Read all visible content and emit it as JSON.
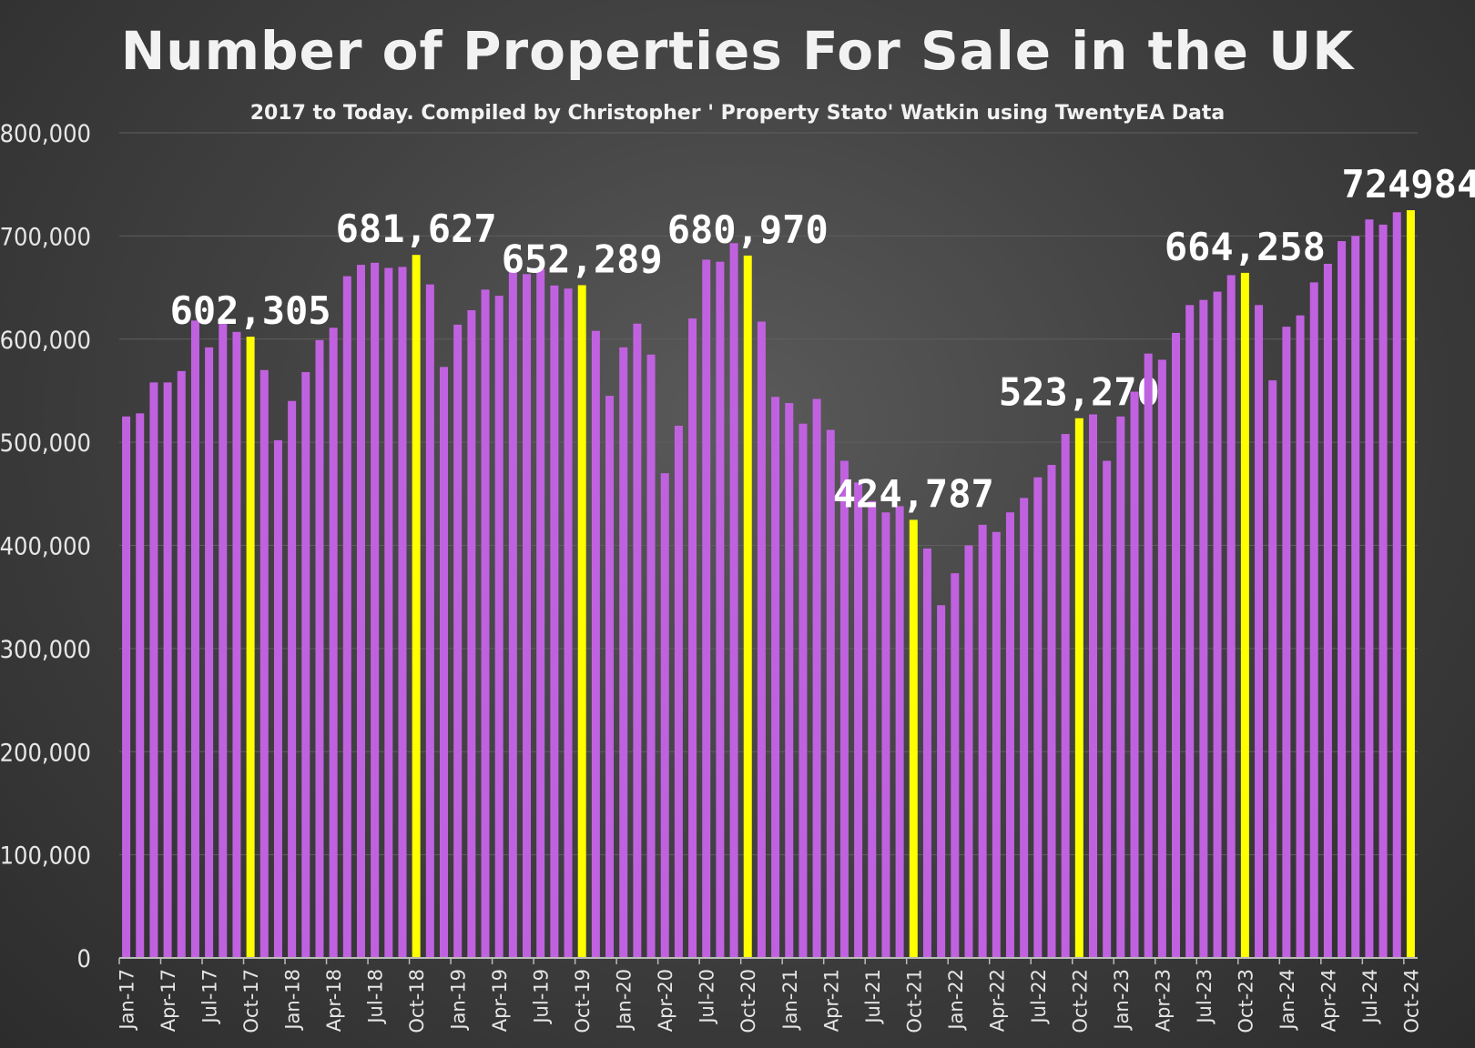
{
  "chart_data": {
    "type": "bar",
    "title": "Number of Properties For Sale in the UK",
    "subtitle": "2017 to Today. Compiled by Christopher ' Property Stato' Watkin using TwentyEA Data",
    "xlabel": "",
    "ylabel": "",
    "ylim": [
      0,
      800000
    ],
    "yticks": [
      "0",
      "100,000",
      "200,000",
      "300,000",
      "400,000",
      "500,000",
      "600,000",
      "700,000",
      "800,000"
    ],
    "grid": true,
    "colors": {
      "bar": "#c062e0",
      "highlight": "#ffff00",
      "background": "#444444"
    },
    "categories": [
      "Jan-17",
      "Feb-17",
      "Mar-17",
      "Apr-17",
      "May-17",
      "Jun-17",
      "Jul-17",
      "Aug-17",
      "Sep-17",
      "Oct-17",
      "Nov-17",
      "Dec-17",
      "Jan-18",
      "Feb-18",
      "Mar-18",
      "Apr-18",
      "May-18",
      "Jun-18",
      "Jul-18",
      "Aug-18",
      "Sep-18",
      "Oct-18",
      "Nov-18",
      "Dec-18",
      "Jan-19",
      "Feb-19",
      "Mar-19",
      "Apr-19",
      "May-19",
      "Jun-19",
      "Jul-19",
      "Aug-19",
      "Sep-19",
      "Oct-19",
      "Nov-19",
      "Dec-19",
      "Jan-20",
      "Feb-20",
      "Mar-20",
      "Apr-20",
      "May-20",
      "Jun-20",
      "Jul-20",
      "Aug-20",
      "Sep-20",
      "Oct-20",
      "Nov-20",
      "Dec-20",
      "Jan-21",
      "Feb-21",
      "Mar-21",
      "Apr-21",
      "May-21",
      "Jun-21",
      "Jul-21",
      "Aug-21",
      "Sep-21",
      "Oct-21",
      "Nov-21",
      "Dec-21",
      "Jan-22",
      "Feb-22",
      "Mar-22",
      "Apr-22",
      "May-22",
      "Jun-22",
      "Jul-22",
      "Aug-22",
      "Sep-22",
      "Oct-22",
      "Nov-22",
      "Dec-22",
      "Jan-23",
      "Feb-23",
      "Mar-23",
      "Apr-23",
      "May-23",
      "Jun-23",
      "Jul-23",
      "Aug-23",
      "Sep-23",
      "Oct-23",
      "Nov-23",
      "Dec-23",
      "Jan-24",
      "Feb-24",
      "Mar-24",
      "Apr-24",
      "May-24",
      "Jun-24",
      "Jul-24",
      "Aug-24",
      "Sep-24",
      "Oct-24"
    ],
    "xtick_labels": [
      "Jan-17",
      "Apr-17",
      "Jul-17",
      "Oct-17",
      "Jan-18",
      "Apr-18",
      "Jul-18",
      "Oct-18",
      "Jan-19",
      "Apr-19",
      "Jul-19",
      "Oct-19",
      "Jan-20",
      "Apr-20",
      "Jul-20",
      "Oct-20",
      "Jan-21",
      "Apr-21",
      "Jul-21",
      "Oct-21",
      "Jan-22",
      "Apr-22",
      "Jul-22",
      "Oct-22",
      "Jan-23",
      "Apr-23",
      "Jul-23",
      "Oct-23",
      "Jan-24",
      "Apr-24",
      "Jul-24",
      "Oct-24"
    ],
    "values": [
      525000,
      528000,
      558000,
      558000,
      569000,
      618000,
      592000,
      618000,
      607000,
      602305,
      570000,
      502000,
      540000,
      568000,
      599000,
      611000,
      661000,
      672000,
      674000,
      669000,
      670000,
      681627,
      653000,
      573000,
      614000,
      628000,
      648000,
      642000,
      668000,
      663000,
      668000,
      652000,
      649000,
      652289,
      608000,
      545000,
      592000,
      615000,
      585000,
      470000,
      516000,
      620000,
      677000,
      675000,
      693000,
      680970,
      617000,
      544000,
      538000,
      518000,
      542000,
      512000,
      482000,
      461000,
      443000,
      432000,
      438000,
      424787,
      397000,
      342000,
      373000,
      400000,
      420000,
      413000,
      432000,
      446000,
      466000,
      478000,
      508000,
      523270,
      527000,
      482000,
      525000,
      549000,
      586000,
      580000,
      606000,
      633000,
      638000,
      646000,
      662000,
      664258,
      633000,
      560000,
      612000,
      623000,
      655000,
      673000,
      695000,
      700000,
      716000,
      711000,
      723000,
      724984
    ],
    "highlights": [
      {
        "category": "Oct-17",
        "label": "602,305"
      },
      {
        "category": "Oct-18",
        "label": "681,627"
      },
      {
        "category": "Oct-19",
        "label": "652,289"
      },
      {
        "category": "Oct-20",
        "label": "680,970"
      },
      {
        "category": "Oct-21",
        "label": "424,787"
      },
      {
        "category": "Oct-22",
        "label": "523,270"
      },
      {
        "category": "Oct-23",
        "label": "664,258"
      },
      {
        "category": "Oct-24",
        "label": "724984"
      }
    ]
  }
}
